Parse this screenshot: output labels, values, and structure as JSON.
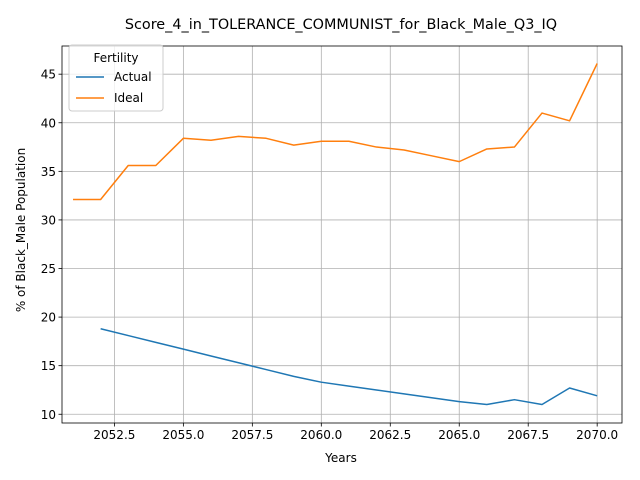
{
  "chart_data": {
    "type": "line",
    "title": "Score_4_in_TOLERANCE_COMMUNIST_for_Black_Male_Q3_IQ",
    "xlabel": "Years",
    "ylabel": "% of Black_Male Population",
    "xlim": [
      2050.6,
      2070.9
    ],
    "ylim": [
      9.1,
      47.9
    ],
    "x_ticks": [
      2052.5,
      2055.0,
      2057.5,
      2060.0,
      2062.5,
      2065.0,
      2067.5,
      2070.0
    ],
    "x_tick_labels": [
      "2052.5",
      "2055.0",
      "2057.5",
      "2060.0",
      "2062.5",
      "2065.0",
      "2067.5",
      "2070.0"
    ],
    "y_ticks": [
      10,
      15,
      20,
      25,
      30,
      35,
      40,
      45
    ],
    "y_tick_labels": [
      "10",
      "15",
      "20",
      "25",
      "30",
      "35",
      "40",
      "45"
    ],
    "grid": true,
    "legend": {
      "title": "Fertility",
      "placement": "top-left"
    },
    "series": [
      {
        "name": "Actual",
        "color": "#1f77b4",
        "x": [
          2052,
          2053,
          2054,
          2055,
          2056,
          2057,
          2058,
          2059,
          2060,
          2061,
          2062,
          2063,
          2064,
          2065,
          2066,
          2067,
          2068,
          2069,
          2070
        ],
        "values": [
          18.8,
          18.1,
          17.4,
          16.7,
          16.0,
          15.3,
          14.6,
          13.9,
          13.3,
          12.9,
          12.5,
          12.1,
          11.7,
          11.3,
          11.0,
          11.5,
          11.0,
          12.7,
          11.9
        ]
      },
      {
        "name": "Ideal",
        "color": "#ff7f0e",
        "x": [
          2051,
          2052,
          2053,
          2054,
          2055,
          2056,
          2057,
          2058,
          2059,
          2060,
          2061,
          2062,
          2063,
          2064,
          2065,
          2066,
          2067,
          2068,
          2069,
          2070
        ],
        "values": [
          32.1,
          32.1,
          35.6,
          35.6,
          38.4,
          38.2,
          38.6,
          38.4,
          37.7,
          38.1,
          38.1,
          37.5,
          37.2,
          36.6,
          36.0,
          37.3,
          37.5,
          41.0,
          40.2,
          46.1
        ]
      }
    ]
  }
}
